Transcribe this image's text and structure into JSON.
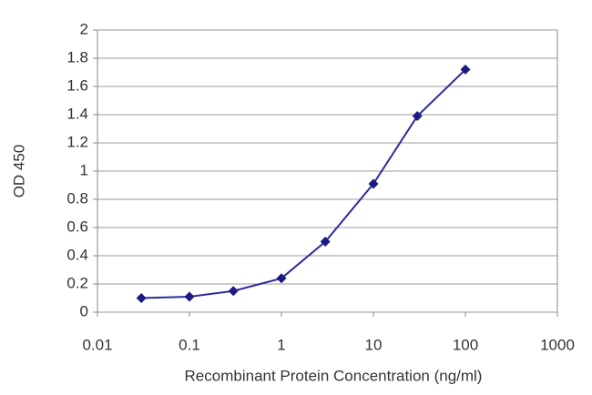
{
  "chart_data": {
    "type": "line",
    "x_label": "Recombinant Protein Concentration (ng/ml)",
    "y_label": "OD 450",
    "x": [
      0.03,
      0.1,
      0.3,
      1,
      3,
      10,
      30,
      100
    ],
    "values": [
      0.1,
      0.11,
      0.15,
      0.24,
      0.5,
      0.91,
      1.39,
      1.72
    ],
    "color": "#2b2b9e",
    "marker_color": "#1a1a80",
    "xscale": "log",
    "xlim": [
      0.01,
      1000
    ],
    "xticks": [
      0.01,
      0.1,
      1,
      10,
      100,
      1000
    ],
    "ylim": [
      0,
      2
    ],
    "yticks": [
      0,
      0.2,
      0.4,
      0.6,
      0.8,
      1,
      1.2,
      1.4,
      1.6,
      1.8,
      2
    ],
    "grid": true
  }
}
